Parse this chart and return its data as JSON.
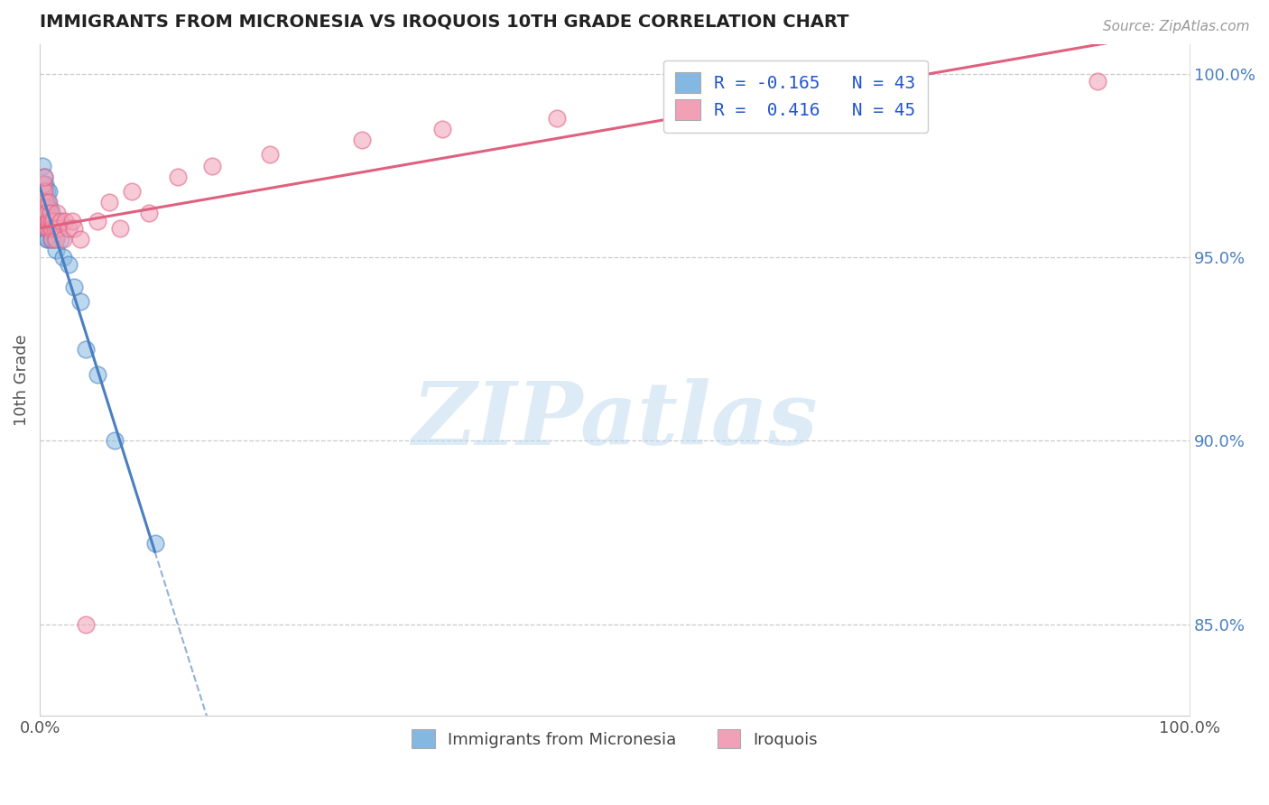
{
  "title": "IMMIGRANTS FROM MICRONESIA VS IROQUOIS 10TH GRADE CORRELATION CHART",
  "source_text": "Source: ZipAtlas.com",
  "ylabel": "10th Grade",
  "right_yticks": [
    "100.0%",
    "95.0%",
    "90.0%",
    "85.0%"
  ],
  "right_ytick_vals": [
    1.0,
    0.95,
    0.9,
    0.85
  ],
  "watermark": "ZIPatlas",
  "legend_blue_label": "R = -0.165   N = 43",
  "legend_pink_label": "R =  0.416   N = 45",
  "legend_bottom_blue": "Immigrants from Micronesia",
  "legend_bottom_pink": "Iroquois",
  "blue_color": "#85b8e0",
  "pink_color": "#f2a0b8",
  "blue_line_color": "#4a7fc1",
  "pink_line_color": "#e06080",
  "blue_scatter_x": [
    0.001,
    0.002,
    0.003,
    0.003,
    0.004,
    0.004,
    0.004,
    0.005,
    0.005,
    0.005,
    0.005,
    0.006,
    0.006,
    0.006,
    0.006,
    0.006,
    0.007,
    0.007,
    0.007,
    0.007,
    0.008,
    0.008,
    0.008,
    0.009,
    0.009,
    0.01,
    0.01,
    0.01,
    0.011,
    0.011,
    0.012,
    0.013,
    0.014,
    0.015,
    0.018,
    0.02,
    0.025,
    0.03,
    0.035,
    0.04,
    0.05,
    0.065,
    0.1
  ],
  "blue_scatter_y": [
    0.96,
    0.975,
    0.97,
    0.965,
    0.972,
    0.968,
    0.963,
    0.97,
    0.965,
    0.962,
    0.958,
    0.968,
    0.965,
    0.962,
    0.958,
    0.955,
    0.965,
    0.962,
    0.958,
    0.955,
    0.968,
    0.963,
    0.958,
    0.963,
    0.958,
    0.962,
    0.958,
    0.955,
    0.96,
    0.955,
    0.958,
    0.955,
    0.952,
    0.96,
    0.955,
    0.95,
    0.948,
    0.942,
    0.938,
    0.925,
    0.918,
    0.9,
    0.872
  ],
  "pink_scatter_x": [
    0.001,
    0.002,
    0.003,
    0.004,
    0.004,
    0.005,
    0.005,
    0.006,
    0.006,
    0.007,
    0.007,
    0.008,
    0.008,
    0.009,
    0.009,
    0.01,
    0.01,
    0.011,
    0.012,
    0.013,
    0.014,
    0.015,
    0.016,
    0.018,
    0.02,
    0.022,
    0.025,
    0.028,
    0.03,
    0.035,
    0.04,
    0.05,
    0.06,
    0.07,
    0.08,
    0.095,
    0.12,
    0.15,
    0.2,
    0.28,
    0.35,
    0.45,
    0.55,
    0.7,
    0.92
  ],
  "pink_scatter_y": [
    0.965,
    0.968,
    0.97,
    0.968,
    0.972,
    0.965,
    0.962,
    0.962,
    0.958,
    0.96,
    0.958,
    0.965,
    0.96,
    0.958,
    0.962,
    0.96,
    0.955,
    0.958,
    0.96,
    0.958,
    0.955,
    0.962,
    0.958,
    0.96,
    0.955,
    0.96,
    0.958,
    0.96,
    0.958,
    0.955,
    0.85,
    0.96,
    0.965,
    0.958,
    0.968,
    0.962,
    0.972,
    0.975,
    0.978,
    0.982,
    0.985,
    0.988,
    0.992,
    0.995,
    0.998
  ],
  "xlim": [
    0.0,
    1.0
  ],
  "ylim": [
    0.825,
    1.008
  ]
}
